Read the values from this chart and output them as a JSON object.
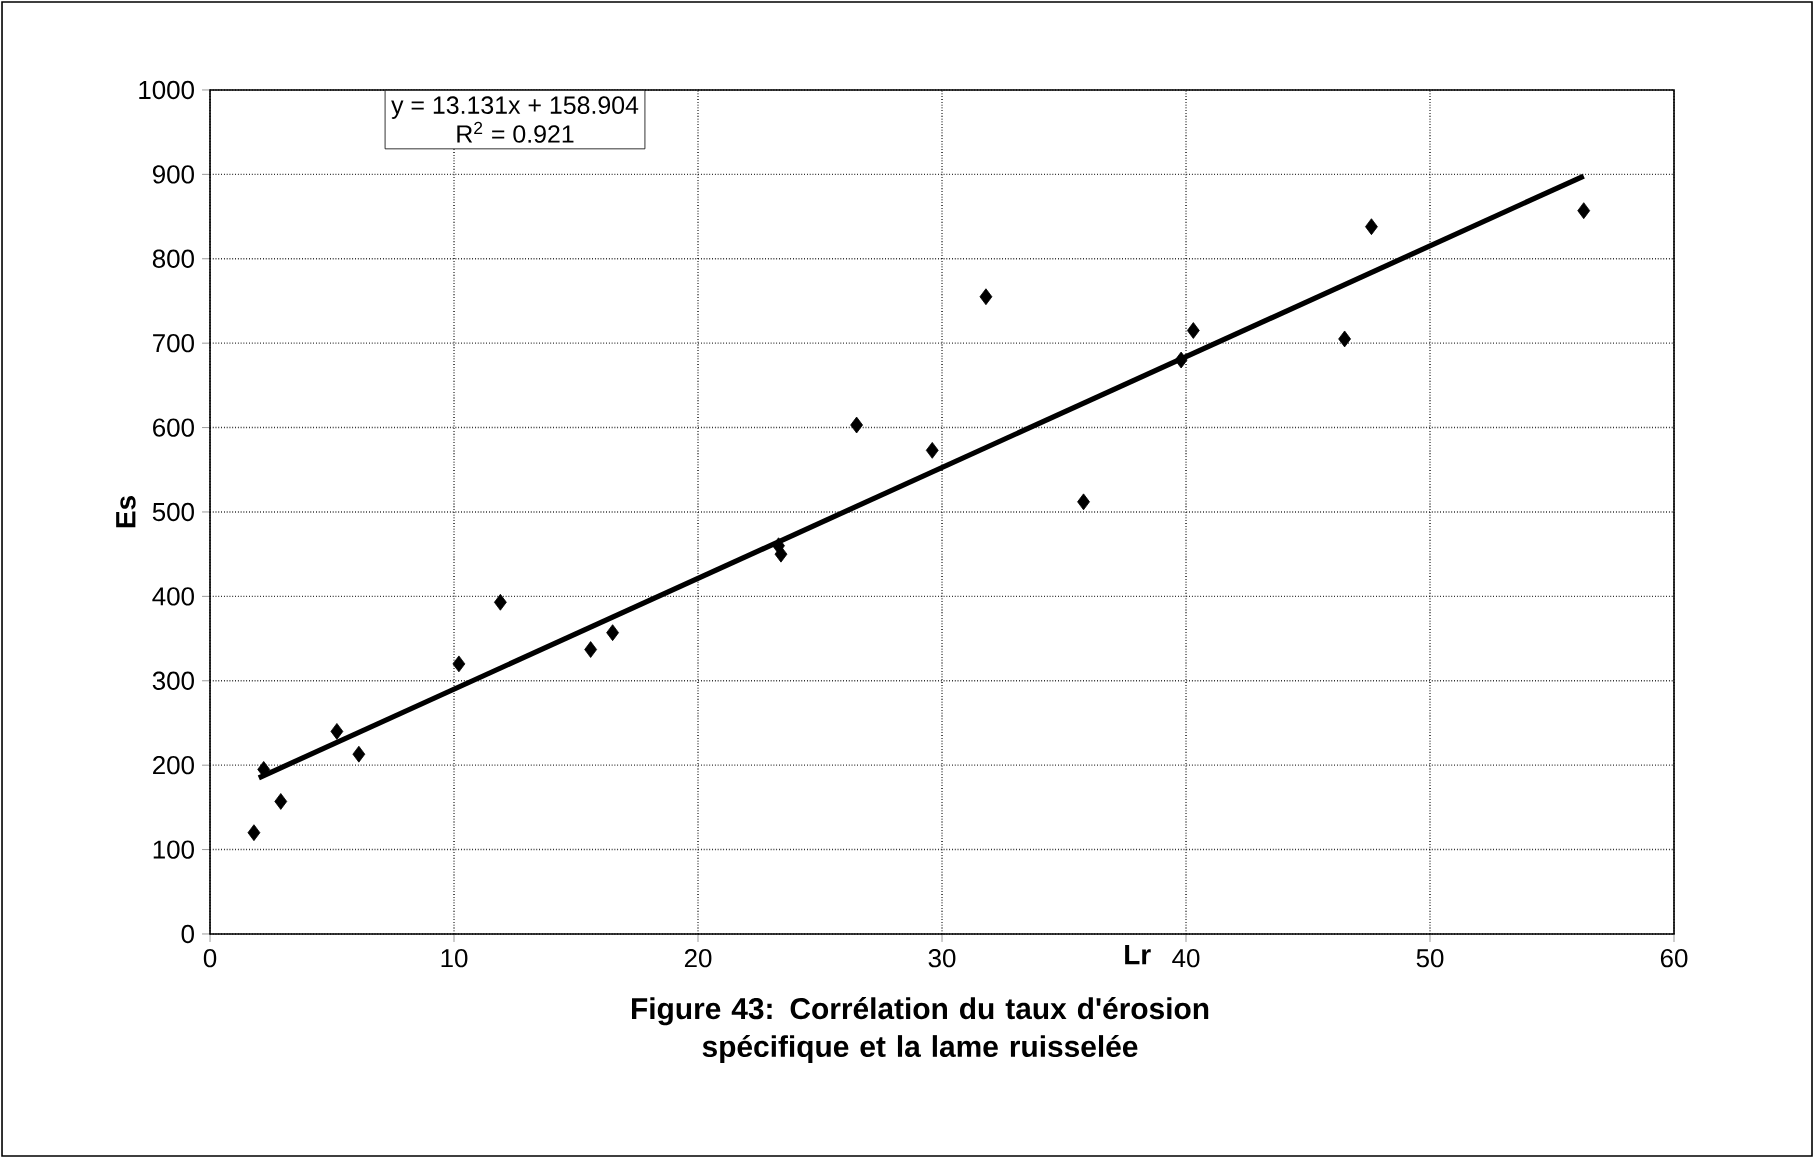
{
  "chart_data": {
    "type": "scatter",
    "title": "**Figure 43: Corrélation du taux d'érosion spécifique et la lame ruisselée**",
    "xlabel": "Lr",
    "ylabel": "Es",
    "annotations": [
      "y = 13.131x + 158.904",
      "R$^{2}$ = 0.921"
    ],
    "xlim": [
      0,
      60
    ],
    "xticks": [
      0,
      10,
      20,
      30,
      40,
      50,
      60
    ],
    "ylim": [
      0,
      1000
    ],
    "yticks": [
      0,
      100,
      200,
      300,
      400,
      500,
      600,
      700,
      800,
      900,
      1000
    ],
    "grid": true,
    "marker": "diamond",
    "series": [
      {
        "color": "#000000",
        "x": [
          1.8,
          2.2,
          2.9,
          5.2,
          6.1,
          10.2,
          11.9,
          15.6,
          16.5,
          23.3,
          23.4,
          26.5,
          29.6,
          31.8,
          35.8,
          39.8,
          40.3,
          46.5,
          47.6,
          56.3
        ],
        "values": [
          120,
          195,
          157,
          240,
          213,
          320,
          393,
          337,
          357,
          460,
          450,
          603,
          573,
          755,
          512,
          680,
          715,
          705,
          838,
          857
        ]
      },
      {
        "type": "line",
        "color": "#000000",
        "line_style": "solid",
        "marker": "none",
        "x": [
          2,
          56.3
        ],
        "values": [
          185,
          898
        ]
      }
    ]
  }
}
